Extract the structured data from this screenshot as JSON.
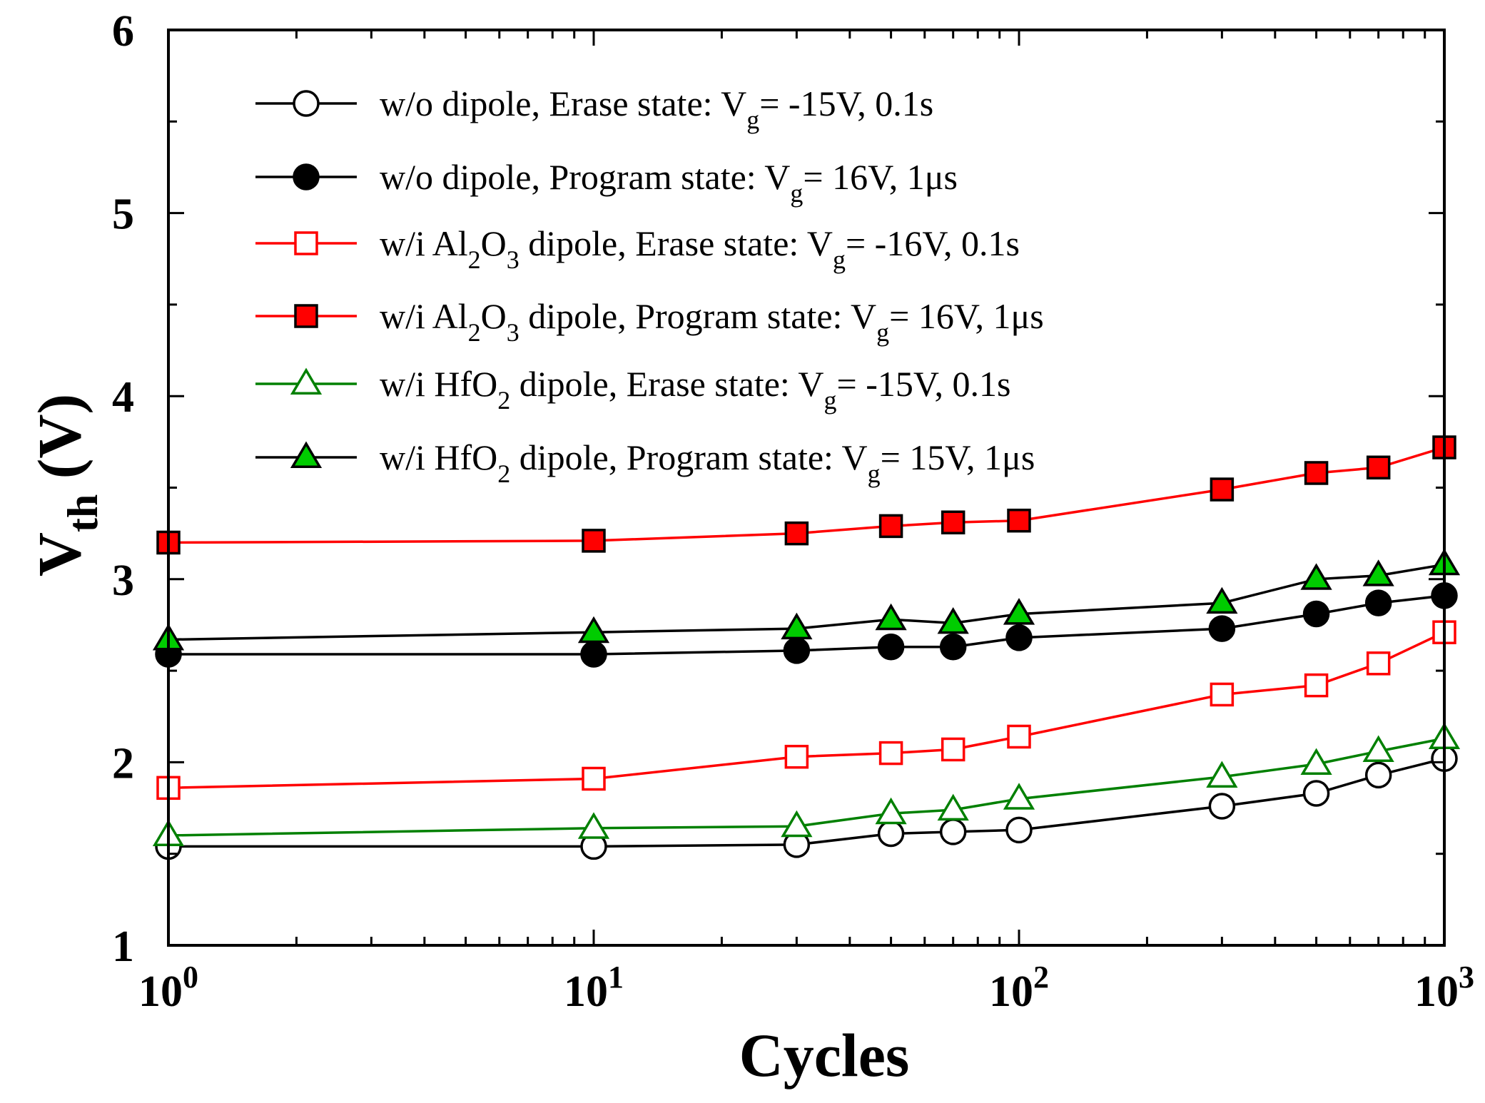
{
  "chart_data": {
    "type": "line",
    "xscale": "log",
    "title": "",
    "xlabel": "Cycles",
    "ylabel": {
      "main": "V",
      "sub": "th",
      "suffix": " (V)"
    },
    "xlim": [
      1,
      1000
    ],
    "ylim": [
      1,
      6
    ],
    "x_ticks": [
      {
        "value": 1,
        "base": "10",
        "exp": "0"
      },
      {
        "value": 10,
        "base": "10",
        "exp": "1"
      },
      {
        "value": 100,
        "base": "10",
        "exp": "2"
      },
      {
        "value": 1000,
        "base": "10",
        "exp": "3"
      }
    ],
    "y_ticks": [
      1,
      2,
      3,
      4,
      5,
      6
    ],
    "grid": false,
    "legend_position": "top-left",
    "x": [
      1,
      10,
      30,
      50,
      70,
      100,
      300,
      500,
      700,
      1000
    ],
    "series": [
      {
        "name": "w/o dipole, Erase state: Vg= -15V, 0.1s",
        "legend_parts": [
          [
            "w/o dipole, Erase state: V",
            ""
          ],
          [
            "g",
            "sub"
          ],
          [
            "= -15V, 0.1s",
            ""
          ]
        ],
        "line_color": "#000000",
        "marker": "circle",
        "marker_fill": "#ffffff",
        "marker_stroke": "#000000",
        "values": [
          1.54,
          1.54,
          1.55,
          1.61,
          1.62,
          1.63,
          1.76,
          1.83,
          1.93,
          2.02
        ]
      },
      {
        "name": "w/o dipole, Program state: Vg= 16V, 1μs",
        "legend_parts": [
          [
            "w/o dipole, Program state: V",
            ""
          ],
          [
            "g",
            "sub"
          ],
          [
            "= 16V, 1μs",
            ""
          ]
        ],
        "line_color": "#000000",
        "marker": "circle",
        "marker_fill": "#000000",
        "marker_stroke": "#000000",
        "values": [
          2.59,
          2.59,
          2.61,
          2.63,
          2.63,
          2.68,
          2.73,
          2.81,
          2.87,
          2.91
        ]
      },
      {
        "name": "w/i Al2O3 dipole, Erase state: Vg= -16V, 0.1s",
        "legend_parts": [
          [
            "w/i Al",
            ""
          ],
          [
            "2",
            "sub"
          ],
          [
            "O",
            ""
          ],
          [
            "3",
            "sub"
          ],
          [
            " dipole, Erase state: V",
            ""
          ],
          [
            "g",
            "sub"
          ],
          [
            "= -16V, 0.1s",
            ""
          ]
        ],
        "line_color": "#ff0000",
        "marker": "square",
        "marker_fill": "#ffffff",
        "marker_stroke": "#ff0000",
        "values": [
          1.86,
          1.91,
          2.03,
          2.05,
          2.07,
          2.14,
          2.37,
          2.42,
          2.54,
          2.71
        ]
      },
      {
        "name": "w/i Al2O3 dipole, Program state: Vg= 16V, 1μs",
        "legend_parts": [
          [
            "w/i Al",
            ""
          ],
          [
            "2",
            "sub"
          ],
          [
            "O",
            ""
          ],
          [
            "3",
            "sub"
          ],
          [
            " dipole, Program state: V",
            ""
          ],
          [
            "g",
            "sub"
          ],
          [
            "= 16V, 1μs",
            ""
          ]
        ],
        "line_color": "#ff0000",
        "marker": "square",
        "marker_fill": "#ff0000",
        "marker_stroke": "#000000",
        "values": [
          3.2,
          3.21,
          3.25,
          3.29,
          3.31,
          3.32,
          3.49,
          3.58,
          3.61,
          3.72
        ]
      },
      {
        "name": "w/i HfO2 dipole, Erase state: Vg= -15V, 0.1s",
        "legend_parts": [
          [
            "w/i HfO",
            ""
          ],
          [
            "2",
            "sub"
          ],
          [
            " dipole, Erase state: V",
            ""
          ],
          [
            "g",
            "sub"
          ],
          [
            "= -15V, 0.1s",
            ""
          ]
        ],
        "line_color": "#008000",
        "marker": "triangle",
        "marker_fill": "#ffffff",
        "marker_stroke": "#008000",
        "values": [
          1.6,
          1.64,
          1.65,
          1.72,
          1.74,
          1.8,
          1.92,
          1.99,
          2.06,
          2.13
        ]
      },
      {
        "name": "w/i HfO2 dipole, Program state: Vg= 15V, 1μs",
        "legend_parts": [
          [
            "w/i HfO",
            ""
          ],
          [
            "2",
            "sub"
          ],
          [
            " dipole, Program state: V",
            ""
          ],
          [
            "g",
            "sub"
          ],
          [
            "= 15V, 1μs",
            ""
          ]
        ],
        "line_color": "#000000",
        "marker": "triangle",
        "marker_fill": "#00cc00",
        "marker_stroke": "#000000",
        "values": [
          2.67,
          2.71,
          2.73,
          2.78,
          2.76,
          2.81,
          2.87,
          3.0,
          3.02,
          3.08
        ]
      }
    ]
  }
}
